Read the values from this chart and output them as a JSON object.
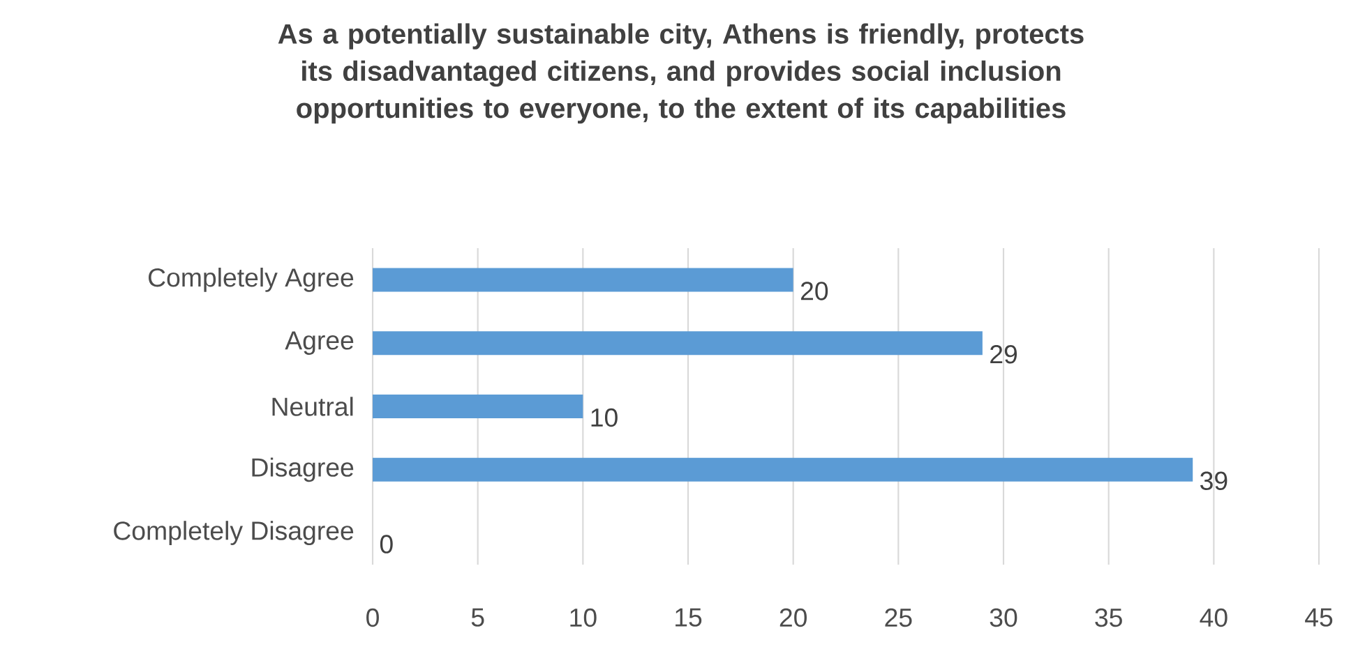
{
  "chart_data": {
    "type": "bar",
    "orientation": "horizontal",
    "title": "As a potentially sustainable city, Athens is friendly, protects its disadvantaged citizens, and provides social inclusion opportunities to everyone, to the extent of its capabilities",
    "categories": [
      "Completely Agree",
      "Agree",
      "Neutral",
      "Disagree",
      "Completely Disagree"
    ],
    "values": [
      20,
      29,
      10,
      39,
      0
    ],
    "color": "#5b9bd5",
    "xlim": [
      0,
      45
    ],
    "xticks": [
      0,
      5,
      10,
      15,
      20,
      25,
      30,
      35,
      40,
      45
    ],
    "grid": "x",
    "data_labels": true
  }
}
